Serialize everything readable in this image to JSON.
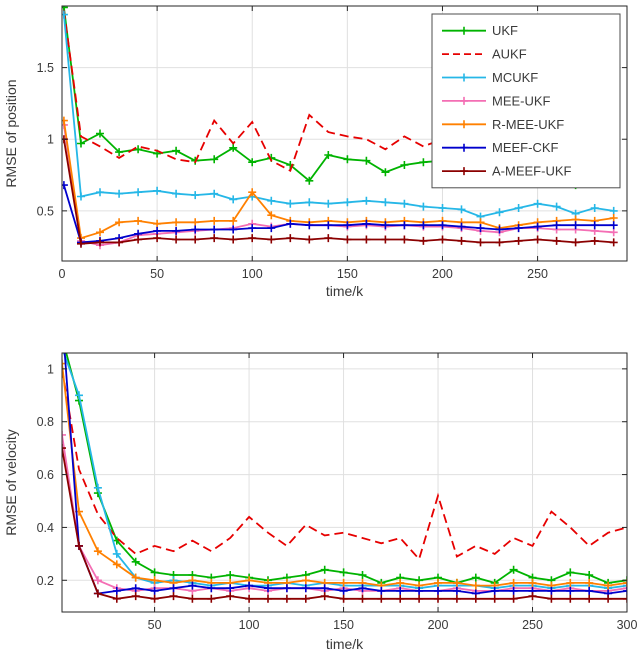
{
  "figure": {
    "background": "#ffffff"
  },
  "style": {
    "axis_color": "#262626",
    "grid_color": "#e0e0e0",
    "text_color": "#3a3a3a",
    "legend_background": "#ffffff",
    "legend_border": "#4d4d4d"
  },
  "chart_data": [
    {
      "type": "line",
      "name": "rmse-position",
      "title": "",
      "xlabel": "time/k",
      "ylabel": "RMSE of position",
      "xlim": [
        0,
        297
      ],
      "ylim": [
        0.15,
        1.93
      ],
      "xticks": [
        0,
        50,
        100,
        150,
        200,
        250
      ],
      "xticklabels": [
        "0",
        "50",
        "100",
        "150",
        "200",
        "250"
      ],
      "yticks": [
        0.5,
        1,
        1.5
      ],
      "yticklabels": [
        "0.5",
        "1",
        "1.5"
      ],
      "grid": true,
      "legend_position": "top-right",
      "x": [
        1,
        10,
        20,
        30,
        40,
        50,
        60,
        70,
        80,
        90,
        100,
        110,
        120,
        130,
        140,
        150,
        160,
        170,
        180,
        190,
        200,
        210,
        220,
        230,
        240,
        250,
        260,
        270,
        280,
        290
      ],
      "series": [
        {
          "name": "UKF",
          "color": "#00b300",
          "dash": null,
          "marker": true,
          "values": [
            1.92,
            0.97,
            1.04,
            0.91,
            0.93,
            0.9,
            0.92,
            0.85,
            0.86,
            0.94,
            0.84,
            0.87,
            0.82,
            0.71,
            0.89,
            0.86,
            0.85,
            0.77,
            0.82,
            0.84,
            0.85,
            0.82,
            0.72,
            0.76,
            0.72,
            0.74,
            0.73,
            0.68,
            0.75,
            0.72
          ]
        },
        {
          "name": "AUKF",
          "color": "#e60000",
          "dash": "9 5",
          "marker": false,
          "values": [
            1.9,
            1.02,
            0.95,
            0.87,
            0.95,
            0.92,
            0.86,
            0.84,
            1.13,
            0.97,
            1.12,
            0.85,
            0.78,
            1.17,
            1.05,
            1.02,
            1.0,
            0.93,
            1.02,
            0.95,
            1.0,
            0.97,
            0.94,
            0.92,
            0.95,
            0.99,
            0.97,
            0.95,
            1.02,
            0.98
          ]
        },
        {
          "name": "MCUKF",
          "color": "#26b7e7",
          "dash": null,
          "marker": true,
          "values": [
            1.87,
            0.6,
            0.63,
            0.62,
            0.63,
            0.64,
            0.62,
            0.61,
            0.62,
            0.58,
            0.6,
            0.57,
            0.55,
            0.56,
            0.55,
            0.56,
            0.57,
            0.56,
            0.55,
            0.53,
            0.52,
            0.51,
            0.46,
            0.49,
            0.52,
            0.55,
            0.53,
            0.48,
            0.52,
            0.5
          ]
        },
        {
          "name": "MEE-UKF",
          "color": "#f46eb4",
          "dash": null,
          "marker": true,
          "values": [
            1.1,
            0.29,
            0.26,
            0.28,
            0.33,
            0.34,
            0.35,
            0.36,
            0.37,
            0.38,
            0.41,
            0.39,
            0.41,
            0.4,
            0.4,
            0.39,
            0.4,
            0.39,
            0.4,
            0.39,
            0.39,
            0.38,
            0.36,
            0.35,
            0.38,
            0.38,
            0.37,
            0.37,
            0.36,
            0.35
          ]
        },
        {
          "name": "R-MEE-UKF",
          "color": "#ff8000",
          "dash": null,
          "marker": true,
          "values": [
            1.13,
            0.31,
            0.35,
            0.42,
            0.43,
            0.41,
            0.42,
            0.42,
            0.43,
            0.43,
            0.63,
            0.47,
            0.43,
            0.42,
            0.43,
            0.42,
            0.43,
            0.42,
            0.43,
            0.42,
            0.43,
            0.42,
            0.42,
            0.38,
            0.4,
            0.42,
            0.43,
            0.44,
            0.43,
            0.45
          ]
        },
        {
          "name": "MEEF-CKF",
          "color": "#0000cc",
          "dash": null,
          "marker": true,
          "values": [
            0.68,
            0.28,
            0.29,
            0.31,
            0.34,
            0.36,
            0.36,
            0.37,
            0.37,
            0.37,
            0.38,
            0.38,
            0.41,
            0.4,
            0.4,
            0.4,
            0.41,
            0.4,
            0.4,
            0.4,
            0.4,
            0.39,
            0.38,
            0.37,
            0.38,
            0.39,
            0.4,
            0.4,
            0.4,
            0.4
          ]
        },
        {
          "name": "A-MEEF-UKF",
          "color": "#8b0000",
          "dash": null,
          "marker": true,
          "values": [
            1.0,
            0.27,
            0.28,
            0.28,
            0.3,
            0.31,
            0.3,
            0.3,
            0.31,
            0.3,
            0.31,
            0.3,
            0.31,
            0.3,
            0.31,
            0.3,
            0.3,
            0.3,
            0.3,
            0.29,
            0.3,
            0.29,
            0.28,
            0.28,
            0.29,
            0.3,
            0.29,
            0.28,
            0.29,
            0.28
          ]
        }
      ]
    },
    {
      "type": "line",
      "name": "rmse-velocity",
      "title": "",
      "xlabel": "time/k",
      "ylabel": "RMSE of velocity",
      "xlim": [
        1,
        300
      ],
      "ylim": [
        0.08,
        1.06
      ],
      "xticks": [
        50,
        100,
        150,
        200,
        250,
        300
      ],
      "xticklabels": [
        "50",
        "100",
        "150",
        "200",
        "250",
        "300"
      ],
      "yticks": [
        0.2,
        0.4,
        0.6,
        0.8,
        1
      ],
      "yticklabels": [
        "0.2",
        "0.4",
        "0.6",
        "0.8",
        "1"
      ],
      "grid": true,
      "legend_position": "none",
      "x": [
        1,
        10,
        20,
        30,
        40,
        50,
        60,
        70,
        80,
        90,
        100,
        110,
        120,
        130,
        140,
        150,
        160,
        170,
        180,
        190,
        200,
        210,
        220,
        230,
        240,
        250,
        260,
        270,
        280,
        290,
        300
      ],
      "series": [
        {
          "name": "UKF",
          "color": "#00b300",
          "dash": null,
          "marker": true,
          "values": [
            1.12,
            0.88,
            0.53,
            0.35,
            0.27,
            0.23,
            0.22,
            0.22,
            0.21,
            0.22,
            0.21,
            0.2,
            0.21,
            0.22,
            0.24,
            0.23,
            0.22,
            0.19,
            0.21,
            0.2,
            0.21,
            0.19,
            0.21,
            0.19,
            0.24,
            0.21,
            0.2,
            0.23,
            0.22,
            0.19,
            0.2
          ]
        },
        {
          "name": "AUKF",
          "color": "#e60000",
          "dash": "9 5",
          "marker": false,
          "values": [
            1.0,
            0.62,
            0.45,
            0.36,
            0.3,
            0.33,
            0.31,
            0.35,
            0.31,
            0.36,
            0.44,
            0.38,
            0.33,
            0.41,
            0.37,
            0.38,
            0.36,
            0.34,
            0.36,
            0.28,
            0.52,
            0.29,
            0.33,
            0.3,
            0.36,
            0.33,
            0.46,
            0.4,
            0.33,
            0.38,
            0.4
          ]
        },
        {
          "name": "MCUKF",
          "color": "#26b7e7",
          "dash": null,
          "marker": true,
          "values": [
            1.08,
            0.9,
            0.55,
            0.3,
            0.21,
            0.19,
            0.2,
            0.19,
            0.18,
            0.19,
            0.18,
            0.18,
            0.19,
            0.18,
            0.19,
            0.18,
            0.18,
            0.18,
            0.18,
            0.17,
            0.18,
            0.18,
            0.18,
            0.17,
            0.18,
            0.18,
            0.17,
            0.18,
            0.18,
            0.17,
            0.18
          ]
        },
        {
          "name": "MEE-UKF",
          "color": "#f46eb4",
          "dash": null,
          "marker": true,
          "values": [
            0.75,
            0.33,
            0.2,
            0.17,
            0.16,
            0.17,
            0.17,
            0.16,
            0.17,
            0.16,
            0.17,
            0.16,
            0.17,
            0.17,
            0.16,
            0.17,
            0.16,
            0.16,
            0.17,
            0.16,
            0.16,
            0.17,
            0.16,
            0.16,
            0.17,
            0.17,
            0.16,
            0.17,
            0.16,
            0.16,
            0.17
          ]
        },
        {
          "name": "R-MEE-UKF",
          "color": "#ff8000",
          "dash": null,
          "marker": true,
          "values": [
            1.02,
            0.46,
            0.31,
            0.26,
            0.21,
            0.2,
            0.19,
            0.2,
            0.19,
            0.19,
            0.2,
            0.19,
            0.19,
            0.2,
            0.19,
            0.19,
            0.19,
            0.18,
            0.19,
            0.18,
            0.19,
            0.19,
            0.18,
            0.18,
            0.19,
            0.19,
            0.18,
            0.19,
            0.19,
            0.18,
            0.19
          ]
        },
        {
          "name": "MEEF-CKF",
          "color": "#0000cc",
          "dash": null,
          "marker": true,
          "values": [
            1.2,
            0.33,
            0.15,
            0.16,
            0.17,
            0.16,
            0.17,
            0.18,
            0.17,
            0.17,
            0.18,
            0.17,
            0.17,
            0.17,
            0.17,
            0.16,
            0.17,
            0.16,
            0.16,
            0.16,
            0.16,
            0.16,
            0.15,
            0.16,
            0.16,
            0.16,
            0.16,
            0.16,
            0.16,
            0.15,
            0.16
          ]
        },
        {
          "name": "A-MEEF-UKF",
          "color": "#8b0000",
          "dash": null,
          "marker": true,
          "values": [
            0.7,
            0.33,
            0.15,
            0.13,
            0.14,
            0.13,
            0.14,
            0.13,
            0.13,
            0.14,
            0.13,
            0.13,
            0.13,
            0.13,
            0.14,
            0.13,
            0.13,
            0.13,
            0.13,
            0.13,
            0.13,
            0.13,
            0.13,
            0.13,
            0.13,
            0.14,
            0.13,
            0.13,
            0.13,
            0.13,
            0.13
          ]
        }
      ]
    }
  ]
}
